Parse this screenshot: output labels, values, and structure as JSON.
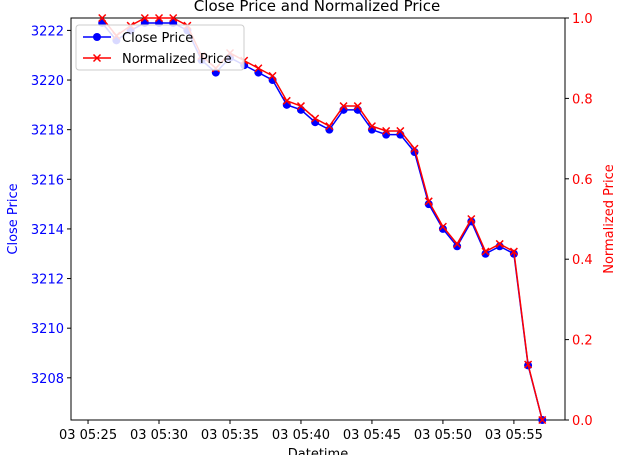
{
  "chart_data": {
    "type": "line",
    "title": "Close Price and Normalized Price",
    "xlabel": "Datetime",
    "ylabel_left": "Close Price",
    "ylabel_right": "Normalized Price",
    "x_tick_labels": [
      "03 05:25",
      "03 05:30",
      "03 05:35",
      "03 05:40",
      "03 05:45",
      "03 05:50",
      "03 05:55"
    ],
    "x_tick_minutes": [
      25,
      30,
      35,
      40,
      45,
      50,
      55
    ],
    "xlim_minutes": [
      23.8,
      58.6
    ],
    "y_left_ticks": [
      3208,
      3210,
      3212,
      3214,
      3216,
      3218,
      3220,
      3222
    ],
    "ylim_left": [
      3206.3,
      3222.5
    ],
    "y_right_ticks": [
      "0.0",
      "0.2",
      "0.4",
      "0.6",
      "0.8",
      "1.0"
    ],
    "ylim_right": [
      0.0,
      1.0
    ],
    "legend_position": "upper-left",
    "series": [
      {
        "name": "Close Price",
        "axis": "left",
        "color": "#0000ff",
        "marker": "circle",
        "x_minutes": [
          26,
          27,
          28,
          29,
          30,
          31,
          32,
          33,
          34,
          35,
          36,
          37,
          38,
          39,
          40,
          41,
          42,
          43,
          44,
          45,
          46,
          47,
          48,
          49,
          50,
          51,
          52,
          53,
          54,
          55,
          56,
          57
        ],
        "values": [
          3222.3,
          3221.6,
          3222.0,
          3222.3,
          3222.3,
          3222.3,
          3222.0,
          3220.8,
          3220.3,
          3220.9,
          3220.6,
          3220.3,
          3220.0,
          3219.0,
          3218.8,
          3218.3,
          3218.0,
          3218.8,
          3218.8,
          3218.0,
          3217.8,
          3217.8,
          3217.1,
          3215.0,
          3214.0,
          3213.3,
          3214.3,
          3213.0,
          3213.3,
          3213.0,
          3208.5,
          3206.3
        ]
      },
      {
        "name": "Normalized Price",
        "axis": "right",
        "color": "#ff0000",
        "marker": "x",
        "x_minutes": [
          26,
          27,
          28,
          29,
          30,
          31,
          32,
          33,
          34,
          35,
          36,
          37,
          38,
          39,
          40,
          41,
          42,
          43,
          44,
          45,
          46,
          47,
          48,
          49,
          50,
          51,
          52,
          53,
          54,
          55,
          56,
          57
        ],
        "values": [
          1.0,
          0.956,
          0.981,
          1.0,
          1.0,
          1.0,
          0.981,
          0.906,
          0.875,
          0.913,
          0.894,
          0.875,
          0.856,
          0.794,
          0.781,
          0.75,
          0.731,
          0.781,
          0.781,
          0.731,
          0.719,
          0.719,
          0.675,
          0.544,
          0.481,
          0.438,
          0.5,
          0.419,
          0.438,
          0.419,
          0.138,
          0.0
        ]
      }
    ]
  }
}
